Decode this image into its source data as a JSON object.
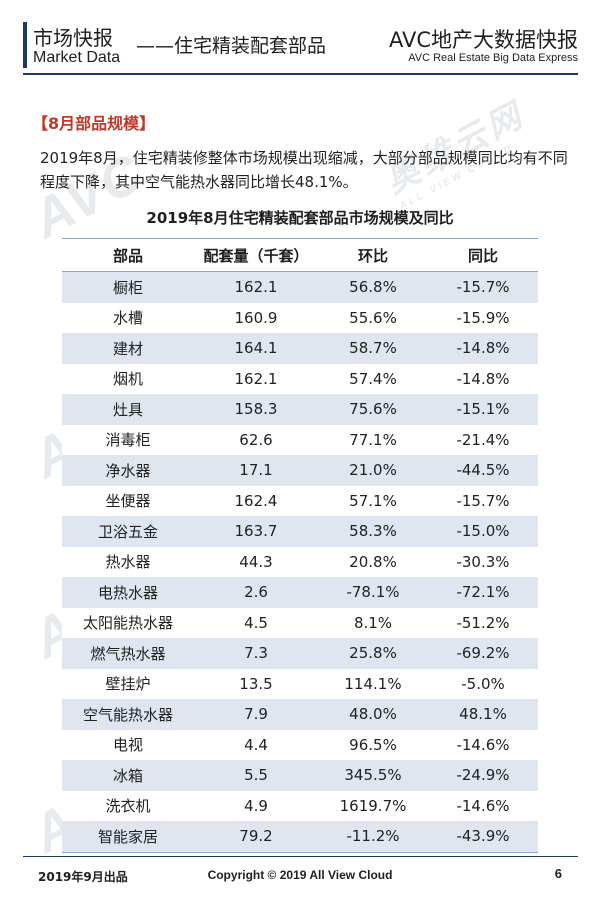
{
  "header": {
    "title_cn": "市场快报",
    "title_en": "Market Data",
    "subtitle": "——住宅精装配套部品",
    "brand": "AVC地产大数据快报",
    "brand_en": "AVC  Real Estate Big Data Express"
  },
  "section": {
    "tag": "【8月部品规模】",
    "intro": "2019年8月，住宅精装修整体市场规模出现缩减，大部分部品规模同比均有不同程度下降，其中空气能热水器同比增长48.1%。"
  },
  "table": {
    "title": "2019年8月住宅精装配套部品市场规模及同比",
    "headers": [
      "部品",
      "配套量（千套）",
      "环比",
      "同比"
    ],
    "rows": [
      [
        "橱柜",
        "162.1",
        "56.8%",
        "-15.7%"
      ],
      [
        "水槽",
        "160.9",
        "55.6%",
        "-15.9%"
      ],
      [
        "建材",
        "164.1",
        "58.7%",
        "-14.8%"
      ],
      [
        "烟机",
        "162.1",
        "57.4%",
        "-14.8%"
      ],
      [
        "灶具",
        "158.3",
        "75.6%",
        "-15.1%"
      ],
      [
        "消毒柜",
        "62.6",
        "77.1%",
        "-21.4%"
      ],
      [
        "净水器",
        "17.1",
        "21.0%",
        "-44.5%"
      ],
      [
        "坐便器",
        "162.4",
        "57.1%",
        "-15.7%"
      ],
      [
        "卫浴五金",
        "163.7",
        "58.3%",
        "-15.0%"
      ],
      [
        "热水器",
        "44.3",
        "20.8%",
        "-30.3%"
      ],
      [
        "电热水器",
        "2.6",
        "-78.1%",
        "-72.1%"
      ],
      [
        "太阳能热水器",
        "4.5",
        "8.1%",
        "-51.2%"
      ],
      [
        "燃气热水器",
        "7.3",
        "25.8%",
        "-69.2%"
      ],
      [
        "壁挂炉",
        "13.5",
        "114.1%",
        "-5.0%"
      ],
      [
        "空气能热水器",
        "7.9",
        "48.0%",
        "48.1%"
      ],
      [
        "电视",
        "4.4",
        "96.5%",
        "-14.6%"
      ],
      [
        "冰箱",
        "5.5",
        "345.5%",
        "-24.9%"
      ],
      [
        "洗衣机",
        "4.9",
        "1619.7%",
        "-14.6%"
      ],
      [
        "智能家居",
        "79.2",
        "-11.2%",
        "-43.9%"
      ]
    ]
  },
  "watermark": {
    "logo": "AVC",
    "cn": "奥维云网",
    "en": "ALL VIEW CLOUD"
  },
  "footer": {
    "date": "2019年9月出品",
    "copyright": "Copyright © 2019  All View Cloud",
    "page": "6"
  },
  "colors": {
    "accent_red": "#c0392b",
    "navy": "#1f3a5f",
    "row_stripe": "#dfe6f0"
  }
}
